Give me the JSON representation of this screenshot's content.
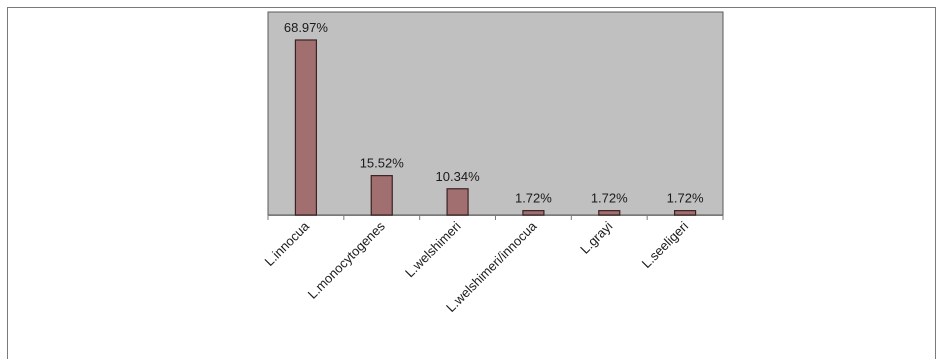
{
  "chart_data": {
    "type": "bar",
    "categories": [
      "L.innocua",
      "L.monocytogenes",
      "L.welshimeri",
      "L.welshimeri/innocua",
      "L.grayi",
      "L.seeligeri"
    ],
    "values": [
      68.97,
      15.52,
      10.34,
      1.72,
      1.72,
      1.72
    ],
    "data_labels": [
      "68.97%",
      "15.52%",
      "10.34%",
      "1.72%",
      "1.72%",
      "1.72%"
    ],
    "title": "",
    "xlabel": "",
    "ylabel": "",
    "ylim": [
      0,
      80
    ],
    "grid": false,
    "legend": "none",
    "colors": {
      "plot_background": "#c0c0c0",
      "bar_fill": "#a16f6f",
      "bar_stroke": "#3a2323"
    }
  }
}
